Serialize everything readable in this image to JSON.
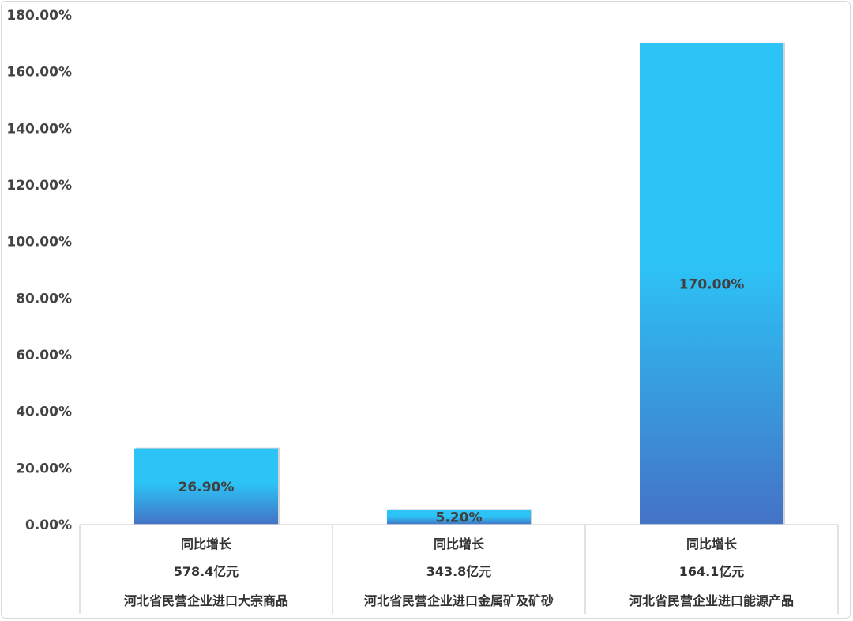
{
  "chart_data": {
    "type": "bar",
    "title": "",
    "xlabel": "",
    "ylabel": "",
    "ylim": [
      0,
      180
    ],
    "y_ticks": [
      "0.00%",
      "20.00%",
      "40.00%",
      "60.00%",
      "80.00%",
      "100.00%",
      "120.00%",
      "140.00%",
      "160.00%",
      "180.00%"
    ],
    "grid": false,
    "legend": "none",
    "categories": [
      {
        "row1": "同比增长",
        "row2": "578.4亿元",
        "row3": "河北省民营企业进口大宗商品"
      },
      {
        "row1": "同比增长",
        "row2": "343.8亿元",
        "row3": "河北省民营企业进口金属矿及矿砂"
      },
      {
        "row1": "同比增长",
        "row2": "164.1亿元",
        "row3": "河北省民营企业进口能源产品"
      }
    ],
    "values": [
      26.9,
      5.2,
      170.0
    ],
    "data_labels": [
      "26.90%",
      "5.20%",
      "170.00%"
    ],
    "colors": {
      "bar_top": "#2cc4f7",
      "bar_bottom": "#4472c4",
      "axis": "#d9d9d9"
    }
  }
}
